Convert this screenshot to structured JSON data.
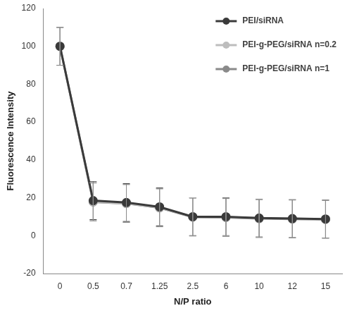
{
  "chart_data": {
    "type": "line",
    "x_label": "N/P ratio",
    "y_label": "Fluorescence Intensity",
    "categories": [
      "0",
      "0.5",
      "0.7",
      "1.25",
      "2.5",
      "6",
      "10",
      "12",
      "15"
    ],
    "series": [
      {
        "name": "PEI/siRNA",
        "color": "#3a3a3a",
        "marker": "circle",
        "values": [
          100,
          18.5,
          17.5,
          15.2,
          10,
          10,
          9.3,
          9,
          8.8
        ],
        "errors": [
          10,
          10,
          10,
          10,
          10,
          10,
          10,
          10,
          10
        ]
      },
      {
        "name": "PEI-g-PEG/siRNA n=0.2",
        "color": "#bdbdbd",
        "marker": "circle",
        "values": [
          100,
          18,
          17,
          14.8,
          10,
          9.8,
          9.2,
          9,
          8.7
        ],
        "errors": [
          10,
          10,
          10,
          10,
          10,
          10,
          10,
          10,
          10
        ]
      },
      {
        "name": "PEI-g-PEG/siRNA n=1",
        "color": "#8a8a8a",
        "marker": "circle",
        "values": [
          100,
          17.8,
          17,
          14.7,
          9.8,
          9.6,
          9,
          8.8,
          8.6
        ],
        "errors": [
          10,
          10,
          10,
          10,
          10,
          10,
          10,
          10,
          10
        ]
      }
    ],
    "ylim": [
      -20,
      120
    ],
    "yticks": [
      -20,
      0,
      20,
      40,
      60,
      80,
      100,
      120
    ],
    "grid": false,
    "legend": "upper right"
  }
}
